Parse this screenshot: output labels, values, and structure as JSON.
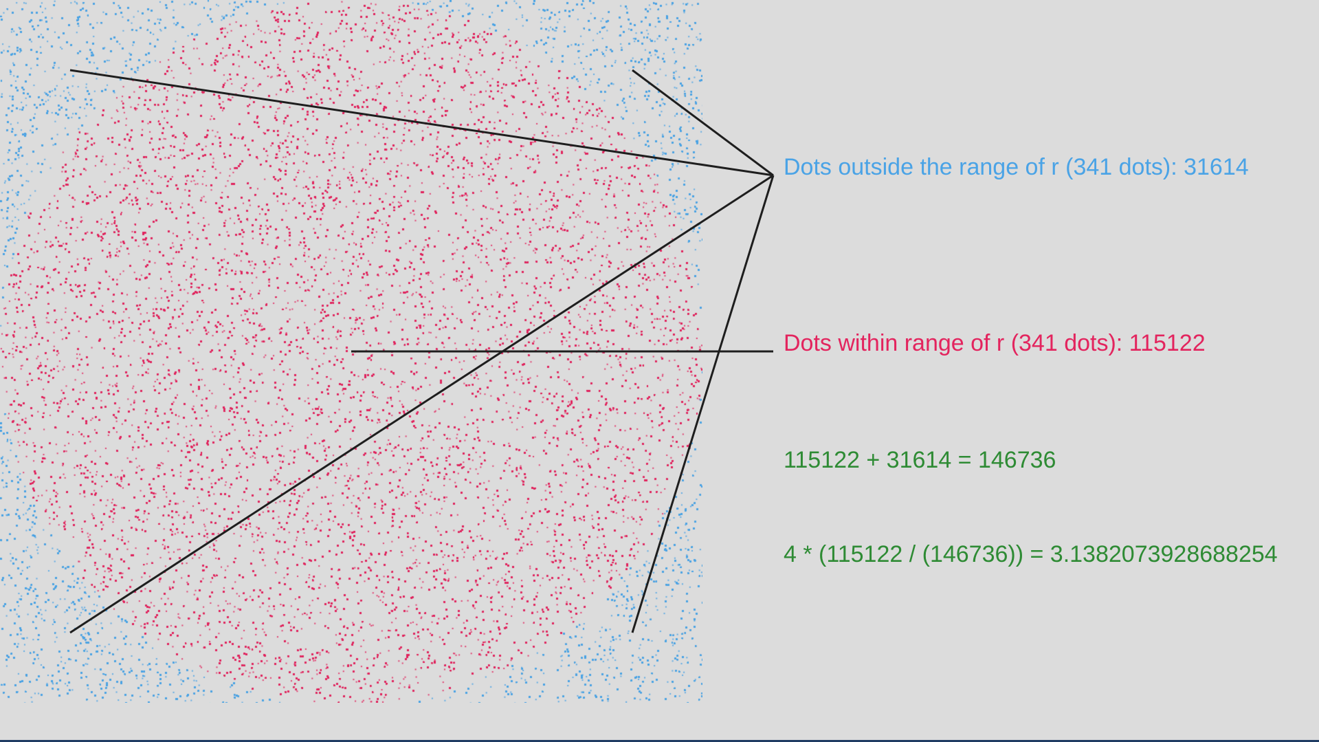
{
  "colors": {
    "background": "#dcdcdc",
    "outside_dots": "#4aa3e6",
    "inside_dots": "#e3245e",
    "equations": "#2e8b34",
    "leader_lines": "#1e1e1e",
    "bottom_edge": "#1f3b63"
  },
  "labels": {
    "outside": "Dots outside the range of r (341 dots): 31614",
    "inside": "Dots within range of r (341 dots): 115122",
    "sum": "115122 + 31614 = 146736",
    "formula": "4 * (115122 / (146736)) = 3.1382073928688254"
  },
  "chart_data": {
    "type": "scatter",
    "radius_r_dots": 341,
    "series": [
      {
        "name": "Dots outside the range of r (341 dots)",
        "count": 31614,
        "color": "#4aa3e6"
      },
      {
        "name": "Dots within range of r (341 dots)",
        "count": 115122,
        "color": "#e3245e"
      }
    ],
    "total": 146736,
    "pi_estimate": 3.1382073928688254
  }
}
